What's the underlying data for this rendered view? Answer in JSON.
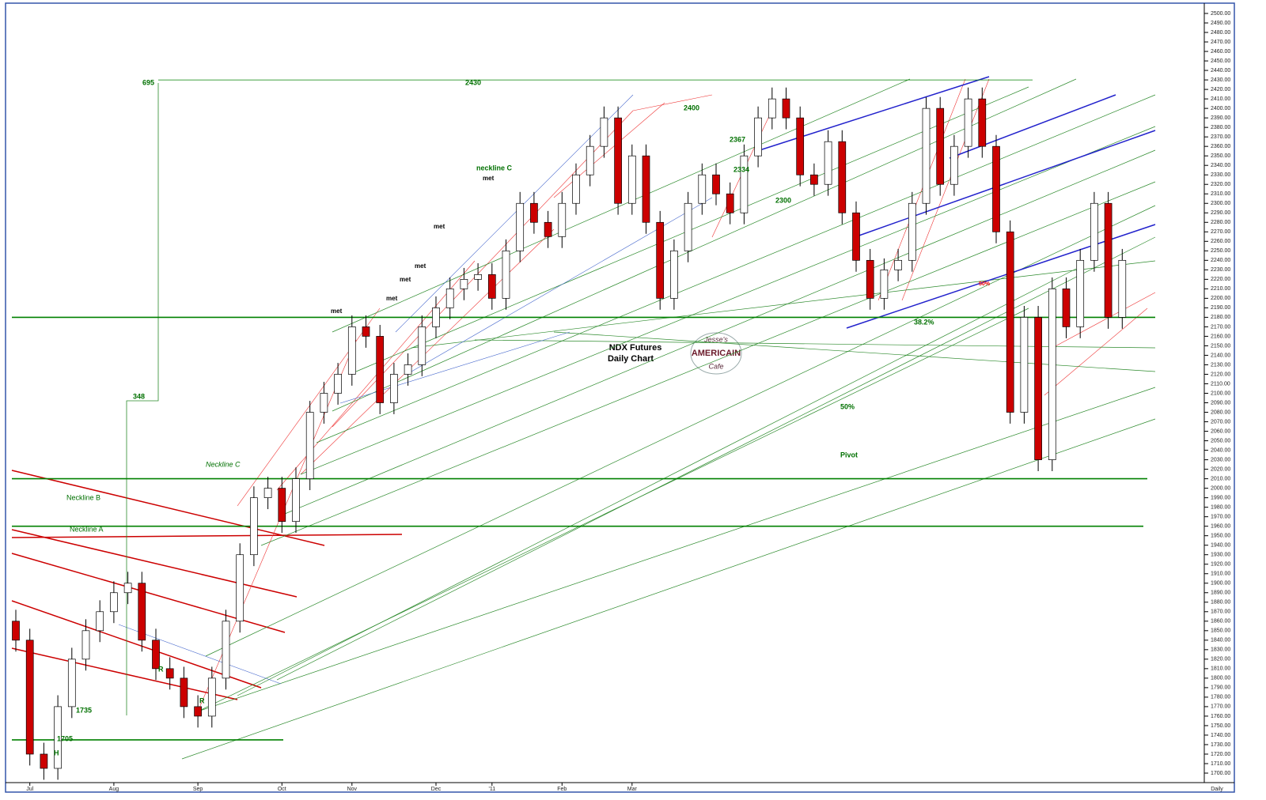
{
  "chart_data": {
    "type": "candlestick",
    "title": "NDX  Futures",
    "subtitle": "Daily Chart",
    "logo": [
      "Jesse's",
      "AMERICAIN",
      "Cafe"
    ],
    "categories": [
      null,
      "Jul",
      null,
      null,
      null,
      null,
      null,
      "Aug",
      null,
      null,
      null,
      null,
      null,
      "Sep",
      null,
      null,
      null,
      null,
      null,
      "Oct",
      null,
      null,
      null,
      null,
      "Nov",
      null,
      null,
      null,
      null,
      null,
      "Dec",
      null,
      null,
      null,
      "'11",
      null,
      null,
      null,
      null,
      "Feb",
      null,
      null,
      null,
      null,
      "Mar",
      null,
      null,
      null,
      null,
      null,
      null,
      null,
      null,
      null,
      null,
      null,
      null,
      null,
      null,
      null,
      null,
      null,
      null,
      null,
      null,
      null,
      null,
      null,
      null,
      null,
      null,
      null,
      null,
      null,
      null,
      null,
      null,
      null,
      null,
      null
    ],
    "x_end_label": "Daily",
    "open": [
      1860,
      1840,
      1720,
      1705,
      1770,
      1820,
      1850,
      1870,
      1890,
      1900,
      1840,
      1810,
      1800,
      1770,
      1760,
      1800,
      1860,
      1930,
      1990,
      2000,
      1965,
      2010,
      2080,
      2100,
      2120,
      2170,
      2160,
      2090,
      2120,
      2130,
      2170,
      2190,
      2210,
      2220,
      2225,
      2200,
      2250,
      2300,
      2280,
      2265,
      2300,
      2330,
      2360,
      2390,
      2300,
      2350,
      2280,
      2200,
      2250,
      2300,
      2330,
      2310,
      2290,
      2350,
      2390,
      2410,
      2390,
      2330,
      2320,
      2365,
      2290,
      2240,
      2200,
      2230,
      2240,
      2300,
      2400,
      2320,
      2360,
      2410,
      2360,
      2270,
      2080,
      2180,
      2030,
      2210,
      2170,
      2240,
      2300,
      2180
    ],
    "high": [
      1872,
      1852,
      1732,
      1782,
      1832,
      1862,
      1882,
      1902,
      1912,
      1912,
      1852,
      1822,
      1812,
      1782,
      1812,
      1872,
      1942,
      2002,
      2012,
      2012,
      2022,
      2092,
      2112,
      2132,
      2182,
      2182,
      2172,
      2132,
      2142,
      2182,
      2202,
      2222,
      2232,
      2237,
      2237,
      2262,
      2312,
      2312,
      2292,
      2312,
      2342,
      2372,
      2402,
      2402,
      2362,
      2362,
      2292,
      2262,
      2312,
      2342,
      2342,
      2322,
      2362,
      2402,
      2422,
      2422,
      2402,
      2342,
      2377,
      2377,
      2302,
      2252,
      2242,
      2252,
      2312,
      2412,
      2412,
      2372,
      2422,
      2422,
      2372,
      2282,
      2192,
      2192,
      2222,
      2222,
      2252,
      2312,
      2312,
      2252
    ],
    "low": [
      1828,
      1708,
      1693,
      1693,
      1758,
      1808,
      1838,
      1858,
      1878,
      1828,
      1798,
      1788,
      1758,
      1748,
      1748,
      1788,
      1848,
      1918,
      1978,
      1953,
      1953,
      1998,
      2068,
      2088,
      2108,
      2148,
      2078,
      2078,
      2108,
      2118,
      2158,
      2178,
      2198,
      2208,
      2188,
      2188,
      2238,
      2268,
      2253,
      2253,
      2288,
      2318,
      2348,
      2288,
      2288,
      2268,
      2188,
      2188,
      2238,
      2288,
      2298,
      2278,
      2278,
      2338,
      2378,
      2378,
      2318,
      2308,
      2308,
      2278,
      2228,
      2188,
      2188,
      2218,
      2228,
      2288,
      2308,
      2308,
      2348,
      2348,
      2258,
      2068,
      2068,
      2018,
      2018,
      2158,
      2158,
      2228,
      2168,
      2168
    ],
    "close": [
      1840,
      1720,
      1705,
      1770,
      1820,
      1850,
      1870,
      1890,
      1900,
      1840,
      1810,
      1800,
      1770,
      1760,
      1800,
      1860,
      1930,
      1990,
      2000,
      1965,
      2010,
      2080,
      2100,
      2120,
      2170,
      2160,
      2090,
      2120,
      2130,
      2170,
      2190,
      2210,
      2220,
      2225,
      2200,
      2250,
      2300,
      2280,
      2265,
      2300,
      2330,
      2360,
      2390,
      2300,
      2350,
      2280,
      2200,
      2250,
      2300,
      2330,
      2310,
      2290,
      2350,
      2390,
      2410,
      2390,
      2330,
      2320,
      2365,
      2290,
      2240,
      2200,
      2230,
      2240,
      2300,
      2400,
      2320,
      2360,
      2410,
      2360,
      2270,
      2080,
      2180,
      2030,
      2210,
      2170,
      2240,
      2300,
      2180,
      2240
    ],
    "up_color": "#ffffff",
    "down_color": "#cc0000",
    "levels": [
      2430,
      2180,
      2010,
      1960,
      1735
    ],
    "level_color": "#008000",
    "annotations": [
      "695",
      "2430",
      "348",
      "2400",
      "2367",
      "2334",
      "2300",
      "neckline C",
      "met",
      "met",
      "met",
      "met",
      "met",
      "met",
      "Neckline C",
      "Neckline B",
      "Neckline A",
      "38.2%",
      "50%",
      "50%",
      "Pivot",
      "1735",
      "1705",
      "H",
      "R",
      "R"
    ],
    "ylim": [
      1690,
      2505
    ],
    "yticks": [
      {
        "value": 2500,
        "label": "2500.00"
      },
      {
        "value": 2490,
        "label": "2490.00"
      },
      {
        "value": 2480,
        "label": "2480.00"
      },
      {
        "value": 2470,
        "label": "2470.00"
      },
      {
        "value": 2460,
        "label": "2460.00"
      },
      {
        "value": 2450,
        "label": "2450.00"
      },
      {
        "value": 2440,
        "label": "2440.00"
      },
      {
        "value": 2430,
        "label": "2430.00"
      },
      {
        "value": 2420,
        "label": "2420.00"
      },
      {
        "value": 2410,
        "label": "2410.00"
      },
      {
        "value": 2400,
        "label": "2400.00"
      },
      {
        "value": 2390,
        "label": "2390.00"
      },
      {
        "value": 2380,
        "label": "2380.00"
      },
      {
        "value": 2370,
        "label": "2370.00"
      },
      {
        "value": 2360,
        "label": "2360.00"
      },
      {
        "value": 2350,
        "label": "2350.00"
      },
      {
        "value": 2340,
        "label": "2340.00"
      },
      {
        "value": 2330,
        "label": "2330.00"
      },
      {
        "value": 2320,
        "label": "2320.00"
      },
      {
        "value": 2310,
        "label": "2310.00"
      },
      {
        "value": 2300,
        "label": "2300.00"
      },
      {
        "value": 2290,
        "label": "2290.00"
      },
      {
        "value": 2280,
        "label": "2280.00"
      },
      {
        "value": 2270,
        "label": "2270.00"
      },
      {
        "value": 2260,
        "label": "2260.00"
      },
      {
        "value": 2250,
        "label": "2250.00"
      },
      {
        "value": 2240,
        "label": "2240.00"
      },
      {
        "value": 2230,
        "label": "2230.00"
      },
      {
        "value": 2220,
        "label": "2220.00"
      },
      {
        "value": 2210,
        "label": "2210.00"
      },
      {
        "value": 2200,
        "label": "2200.00"
      },
      {
        "value": 2190,
        "label": "2190.00"
      },
      {
        "value": 2180,
        "label": "2180.00"
      },
      {
        "value": 2170,
        "label": "2170.00"
      },
      {
        "value": 2160,
        "label": "2160.00"
      },
      {
        "value": 2150,
        "label": "2150.00"
      },
      {
        "value": 2140,
        "label": "2140.00"
      },
      {
        "value": 2130,
        "label": "2130.00"
      },
      {
        "value": 2120,
        "label": "2120.00"
      },
      {
        "value": 2110,
        "label": "2110.00"
      },
      {
        "value": 2100,
        "label": "2100.00"
      },
      {
        "value": 2090,
        "label": "2090.00"
      },
      {
        "value": 2080,
        "label": "2080.00"
      },
      {
        "value": 2070,
        "label": "2070.00"
      },
      {
        "value": 2060,
        "label": "2060.00"
      },
      {
        "value": 2050,
        "label": "2050.00"
      },
      {
        "value": 2040,
        "label": "2040.00"
      },
      {
        "value": 2030,
        "label": "2030.00"
      },
      {
        "value": 2020,
        "label": "2020.00"
      },
      {
        "value": 2010,
        "label": "2010.00"
      },
      {
        "value": 2000,
        "label": "2000.00"
      },
      {
        "value": 1990,
        "label": "1990.00"
      },
      {
        "value": 1980,
        "label": "1980.00"
      },
      {
        "value": 1970,
        "label": "1970.00"
      },
      {
        "value": 1960,
        "label": "1960.00"
      },
      {
        "value": 1950,
        "label": "1950.00"
      },
      {
        "value": 1940,
        "label": "1940.00"
      },
      {
        "value": 1930,
        "label": "1930.00"
      },
      {
        "value": 1920,
        "label": "1920.00"
      },
      {
        "value": 1910,
        "label": "1910.00"
      },
      {
        "value": 1900,
        "label": "1900.00"
      },
      {
        "value": 1890,
        "label": "1890.00"
      },
      {
        "value": 1880,
        "label": "1880.00"
      },
      {
        "value": 1870,
        "label": "1870.00"
      },
      {
        "value": 1860,
        "label": "1860.00"
      },
      {
        "value": 1850,
        "label": "1850.00"
      },
      {
        "value": 1840,
        "label": "1840.00"
      },
      {
        "value": 1830,
        "label": "1830.00"
      },
      {
        "value": 1820,
        "label": "1820.00"
      },
      {
        "value": 1810,
        "label": "1810.00"
      },
      {
        "value": 1800,
        "label": "1800.00"
      },
      {
        "value": 1790,
        "label": "1790.00"
      },
      {
        "value": 1780,
        "label": "1780.00"
      },
      {
        "value": 1770,
        "label": "1770.00"
      },
      {
        "value": 1760,
        "label": "1760.00"
      },
      {
        "value": 1750,
        "label": "1750.00"
      },
      {
        "value": 1740,
        "label": "1740.00"
      },
      {
        "value": 1730,
        "label": "1730.00"
      },
      {
        "value": 1720,
        "label": "1720.00"
      },
      {
        "value": 1710,
        "label": "1710.00"
      },
      {
        "value": 1700,
        "label": "1700.00"
      }
    ]
  }
}
